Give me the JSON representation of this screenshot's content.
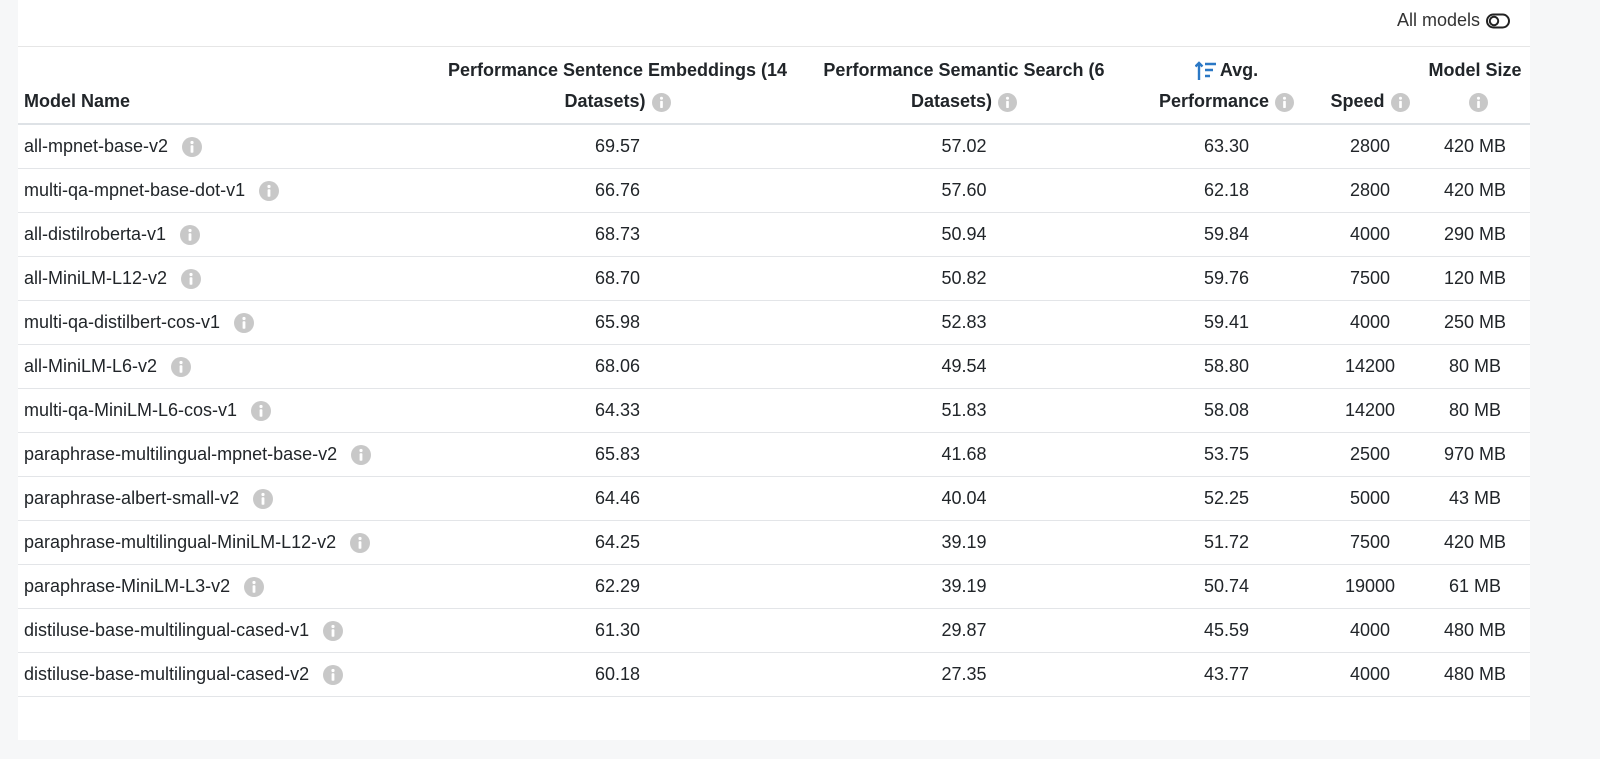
{
  "toggle": {
    "label": "All models"
  },
  "table": {
    "headers": [
      "Model Name",
      "Performance Sentence Embeddings (14 Datasets)",
      "Performance Semantic Search (6 Datasets)",
      "Avg. Performance",
      "Speed",
      "Model Size"
    ],
    "rows": [
      [
        "all-mpnet-base-v2",
        "69.57",
        "57.02",
        "63.30",
        "2800",
        "420 MB"
      ],
      [
        "multi-qa-mpnet-base-dot-v1",
        "66.76",
        "57.60",
        "62.18",
        "2800",
        "420 MB"
      ],
      [
        "all-distilroberta-v1",
        "68.73",
        "50.94",
        "59.84",
        "4000",
        "290 MB"
      ],
      [
        "all-MiniLM-L12-v2",
        "68.70",
        "50.82",
        "59.76",
        "7500",
        "120 MB"
      ],
      [
        "multi-qa-distilbert-cos-v1",
        "65.98",
        "52.83",
        "59.41",
        "4000",
        "250 MB"
      ],
      [
        "all-MiniLM-L6-v2",
        "68.06",
        "49.54",
        "58.80",
        "14200",
        "80 MB"
      ],
      [
        "multi-qa-MiniLM-L6-cos-v1",
        "64.33",
        "51.83",
        "58.08",
        "14200",
        "80 MB"
      ],
      [
        "paraphrase-multilingual-mpnet-base-v2",
        "65.83",
        "41.68",
        "53.75",
        "2500",
        "970 MB"
      ],
      [
        "paraphrase-albert-small-v2",
        "64.46",
        "40.04",
        "52.25",
        "5000",
        "43 MB"
      ],
      [
        "paraphrase-multilingual-MiniLM-L12-v2",
        "64.25",
        "39.19",
        "51.72",
        "7500",
        "420 MB"
      ],
      [
        "paraphrase-MiniLM-L3-v2",
        "62.29",
        "39.19",
        "50.74",
        "19000",
        "61 MB"
      ],
      [
        "distiluse-base-multilingual-cased-v1",
        "61.30",
        "29.87",
        "45.59",
        "4000",
        "480 MB"
      ],
      [
        "distiluse-base-multilingual-cased-v2",
        "60.18",
        "27.35",
        "43.77",
        "4000",
        "480 MB"
      ]
    ]
  }
}
